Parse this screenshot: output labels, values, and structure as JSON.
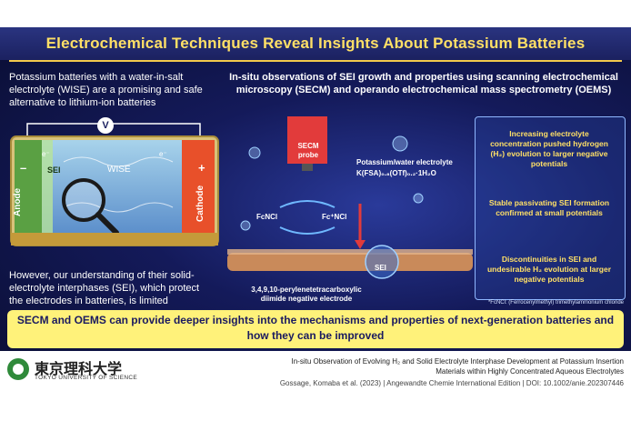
{
  "title": "Electrochemical Techniques Reveal Insights About Potassium Batteries",
  "intro_text": "Potassium batteries with a water-in-salt electrolyte (WISE) are a promising and safe alternative to lithium-ion batteries",
  "limitation_text": "However, our understanding of their solid-electrolyte interphases (SEI), which protect the electrodes in batteries, is limited",
  "method_title": "In-situ observations of SEI growth and properties using scanning electrochemical microscopy (SECM) and operando electrochemical mass spectrometry (OEMS)",
  "battery": {
    "anode": "Anode",
    "cathode": "Cathode",
    "sei": "SEI",
    "wise": "WISE",
    "minus": "–",
    "plus": "+",
    "voltmeter": "V",
    "electron": "e⁻"
  },
  "diagram": {
    "probe_label": "SECM probe",
    "electrolyte_line1": "Potassium/water electrolyte",
    "electrolyte_line2": "K(FSA)₀.₈(OTf)₀.₂·1H₂O",
    "fcncl": "FcNCl",
    "fcncl_plus": "Fc⁺NCl",
    "sei_label": "SEI",
    "electrode_label": "3,4,9,10-perylenetetracarboxylic diimide negative electrode",
    "footnote": "*FcNCl: (Ferrocenylmethyl) trimethylammonium chloride"
  },
  "findings": [
    "Increasing electrolyte concentration pushed hydrogen (H₂) evolution to larger negative potentials",
    "Stable passivating SEI formation confirmed at small potentials",
    "Discontinuities in SEI and undesirable H₂ evolution at larger negative potentials"
  ],
  "conclusion": "SECM and OEMS can provide deeper insights into the mechanisms and properties of next-generation batteries and how they can be improved",
  "logo": {
    "name_jp": "東京理科大学",
    "name_en": "TOKYO UNIVERSITY OF SCIENCE"
  },
  "citation": {
    "line1": "In-situ Observation of Evolving H₂ and Solid Electrolyte Interphase Development at Potassium Insertion",
    "line2": "Materials within Highly Concentrated Aqueous Electrolytes",
    "line3": "Gossage, Komaba et al. (2023)  |  Angewandte Chemie International Edition  |  DOI: 10.1002/anie.202307446"
  },
  "colors": {
    "title": "#ffe066",
    "accent_yellow": "#fff27a",
    "anode": "#6ab04c",
    "cathode": "#e8502a",
    "probe_red": "#e23b3b"
  }
}
